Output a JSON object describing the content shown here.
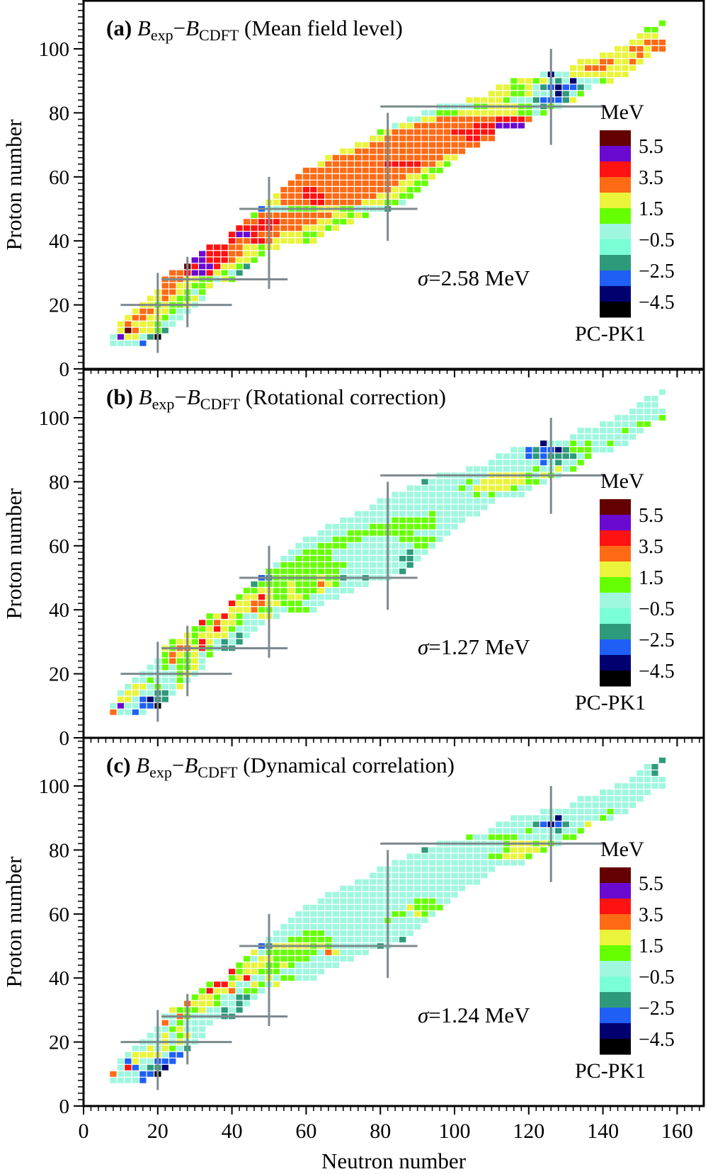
{
  "chart_data": {
    "type": "heatmap",
    "xlabel": "Neutron number",
    "ylabel": "Proton number",
    "xlim": [
      0,
      167
    ],
    "ylim": [
      0,
      115
    ],
    "x_ticks": [
      0,
      20,
      40,
      60,
      80,
      100,
      120,
      140,
      160
    ],
    "y_ticks": [
      0,
      20,
      40,
      60,
      80,
      100
    ],
    "grid": false,
    "color_scale": {
      "unit": "MeV",
      "bins": [
        {
          "code": "l",
          "color": "#640000",
          "range": [
            5.5,
            6.5
          ]
        },
        {
          "code": "k",
          "color": "#6a0ad0",
          "range": [
            4.5,
            5.5
          ]
        },
        {
          "code": "j",
          "color": "#ff1212",
          "range": [
            3.5,
            4.5
          ]
        },
        {
          "code": "i",
          "color": "#ff6a14",
          "range": [
            2.5,
            3.5
          ]
        },
        {
          "code": "h",
          "color": "#e9f43a",
          "range": [
            1.5,
            2.5
          ]
        },
        {
          "code": "g",
          "color": "#66ff00",
          "range": [
            0.5,
            1.5
          ]
        },
        {
          "code": "f",
          "color": "#a0f7df",
          "range": [
            -0.5,
            0.5
          ]
        },
        {
          "code": "e",
          "color": "#7affd6",
          "range": [
            -1.5,
            -0.5
          ]
        },
        {
          "code": "d",
          "color": "#2e9a7c",
          "range": [
            -2.5,
            -1.5
          ]
        },
        {
          "code": "c",
          "color": "#1f5ff5",
          "range": [
            -3.5,
            -2.5
          ]
        },
        {
          "code": "b",
          "color": "#00006e",
          "range": [
            -4.5,
            -3.5
          ]
        },
        {
          "code": "a",
          "color": "#000000",
          "range": [
            -5.5,
            -4.5
          ]
        }
      ],
      "tick_labels": [
        "5.5",
        "3.5",
        "1.5",
        "−0.5",
        "−2.5",
        "−4.5"
      ]
    },
    "magic_lines_color": "#7d8a8e",
    "magic_lines": [
      {
        "orient": "h",
        "at": 20,
        "from": 10,
        "to": 40
      },
      {
        "orient": "h",
        "at": 28,
        "from": 21,
        "to": 55
      },
      {
        "orient": "h",
        "at": 50,
        "from": 42,
        "to": 90
      },
      {
        "orient": "h",
        "at": 82,
        "from": 80,
        "to": 140
      },
      {
        "orient": "v",
        "at": 20,
        "from": 5,
        "to": 30
      },
      {
        "orient": "v",
        "at": 28,
        "from": 13,
        "to": 35
      },
      {
        "orient": "v",
        "at": 50,
        "from": 25,
        "to": 60
      },
      {
        "orient": "v",
        "at": 82,
        "from": 40,
        "to": 80
      },
      {
        "orient": "v",
        "at": 126,
        "from": 70,
        "to": 100
      }
    ],
    "symbols": {
      "B": "B",
      "exp": "exp",
      "dash": "−",
      "CDFT": "CDFT",
      "sigma": "σ"
    },
    "panels": [
      {
        "label": "(a)",
        "subtitle": "(Mean field level)",
        "sigma_text": "=2.58 MeV",
        "model": "PC-PK1",
        "rows": [
          [
            8,
            8,
            "ffffc"
          ],
          [
            10,
            8,
            "fkhhfda"
          ],
          [
            12,
            10,
            "hlihhgd"
          ],
          [
            14,
            10,
            "hihhhgff"
          ],
          [
            16,
            12,
            "hiihhgff"
          ],
          [
            18,
            14,
            "hiihhgff"
          ],
          [
            20,
            16,
            "hhghgghf"
          ],
          [
            22,
            18,
            "hhihgghf"
          ],
          [
            24,
            20,
            "hiihgfg"
          ],
          [
            26,
            22,
            "iihhggh"
          ],
          [
            28,
            22,
            "iiihhggfhg"
          ],
          [
            30,
            24,
            "iijkkjhgfd"
          ],
          [
            32,
            28,
            "ljkkjhhgd"
          ],
          [
            34,
            30,
            "kkjjjihhg"
          ],
          [
            36,
            32,
            "kjjjiihhg"
          ],
          [
            38,
            34,
            "jjjiihhghh"
          ],
          [
            40,
            40,
            "jiijjihhhhgh"
          ],
          [
            42,
            40,
            "jkkjiiihhhggh"
          ],
          [
            44,
            42,
            "jjjjjiiiihhhgh"
          ],
          [
            46,
            44,
            "iijjjiiiiihhggh"
          ],
          [
            48,
            46,
            "giiiiiiiiiihhghg"
          ],
          [
            50,
            48,
            "cfffgggghhhggffffd"
          ],
          [
            52,
            50,
            "hhiiiijjiiiiihhhggf"
          ],
          [
            54,
            52,
            "hiiijjjiiiiiiihhhgg"
          ],
          [
            56,
            54,
            "iiijjiiiiiiiiiihhgg"
          ],
          [
            58,
            56,
            "iiiiiiiiiiiiiiihhgg"
          ],
          [
            60,
            58,
            "iiiiiiiiiiiiiiihhgh"
          ],
          [
            62,
            60,
            "iiiiiiiiiiiiiiiihgg"
          ],
          [
            64,
            64,
            "hiiiiiiiijjjjjiihg"
          ],
          [
            66,
            66,
            "hiiiiiiiiiiiiiiihh"
          ],
          [
            68,
            70,
            "hhiiiiiiiiiiiiiii"
          ],
          [
            70,
            74,
            "hhiiiiiiiiiiiiiii"
          ],
          [
            72,
            78,
            "hhiiiiiiiiiiijjii"
          ],
          [
            74,
            80,
            "ghiiiiiiiijjjjjj"
          ],
          [
            76,
            84,
            "fhhiiiiiiiijjjkkkk"
          ],
          [
            78,
            88,
            "ffhhiiiiiiiijjjji"
          ],
          [
            80,
            92,
            "ffggghhhhhhhhggfg"
          ],
          [
            82,
            96,
            "fffffgghhhhggfdgf"
          ],
          [
            84,
            104,
            "hhhhhgfffdcccdh"
          ],
          [
            86,
            110,
            "hhhgghfffbdfg"
          ],
          [
            88,
            112,
            "hhgghfdcbccdf"
          ],
          [
            90,
            116,
            "ghhghfdfbfffgh"
          ],
          [
            92,
            124,
            "fbffhhhhhhhh"
          ],
          [
            94,
            132,
            "hhiiihhhh"
          ],
          [
            96,
            134,
            "hhhiihhih"
          ],
          [
            98,
            140,
            "hhhhhih"
          ],
          [
            100,
            144,
            "hhiihii"
          ],
          [
            102,
            148,
            "hhiii"
          ],
          [
            104,
            150,
            "hhh"
          ],
          [
            106,
            152,
            "gg"
          ],
          [
            108,
            156,
            "g"
          ]
        ]
      },
      {
        "label": "(b)",
        "subtitle": "(Rotational correction)",
        "sigma_text": "=1.27 MeV",
        "model": "PC-PK1",
        "rows": [
          [
            8,
            8,
            "iffcf"
          ],
          [
            10,
            8,
            "fkffcca"
          ],
          [
            12,
            10,
            "hhfcbdd"
          ],
          [
            14,
            10,
            "fhhffddf"
          ],
          [
            16,
            12,
            "fhhfgffh"
          ],
          [
            18,
            14,
            "ffgfffgf"
          ],
          [
            20,
            16,
            "fffffghf"
          ],
          [
            22,
            18,
            "ffgfgghf"
          ],
          [
            24,
            20,
            "fgigghf"
          ],
          [
            26,
            22,
            "gihghfg"
          ],
          [
            28,
            22,
            "hgiihjgfdd"
          ],
          [
            30,
            24,
            "ghhgjhfdfd"
          ],
          [
            32,
            28,
            "hghhhhfdf"
          ],
          [
            34,
            30,
            "gghjhgfff"
          ],
          [
            36,
            32,
            "jgihhgfff"
          ],
          [
            38,
            34,
            "ghjhgffhhf"
          ],
          [
            40,
            40,
            "hhhiggffgggf"
          ],
          [
            42,
            40,
            "jhhiihhgggfff"
          ],
          [
            44,
            42,
            "ghhjhgghhgffff"
          ],
          [
            46,
            44,
            "gghhgghggghffff"
          ],
          [
            48,
            46,
            "dgggghgggihgffff"
          ],
          [
            50,
            48,
            "cdgggggghggdffdfff"
          ],
          [
            52,
            50,
            "ggggggggggffffffffd"
          ],
          [
            54,
            52,
            "fgggggggggffffffffd"
          ],
          [
            56,
            54,
            "ffgggggfffffffffddf"
          ],
          [
            58,
            56,
            "ffggggffffffffffdff"
          ],
          [
            60,
            58,
            "fffggggfffffffffggf"
          ],
          [
            62,
            60,
            "ffffggggfffffgggggf"
          ],
          [
            64,
            64,
            "ffffgggggggggfffff"
          ],
          [
            66,
            66,
            "ffffffgggggggggfff"
          ],
          [
            68,
            70,
            "fffffffggggggffff"
          ],
          [
            70,
            74,
            "ffffffffffgffffff"
          ],
          [
            72,
            78,
            "ffffffffffffffff"
          ],
          [
            74,
            80,
            "ffffffffffffffff"
          ],
          [
            76,
            84,
            "fffffffffffgfgffff"
          ],
          [
            78,
            88,
            "fffffffgfhhhhhgff"
          ],
          [
            80,
            92,
            "dfffffgfhhhhhhggf"
          ],
          [
            82,
            96,
            "fffffffhhhhhgfhgf"
          ],
          [
            84,
            104,
            "fffffffffgffhfg"
          ],
          [
            86,
            110,
            "fffffffcfdffg"
          ],
          [
            88,
            112,
            "ffffcdcddddfg"
          ],
          [
            90,
            116,
            "ffcdccbdgggfff"
          ],
          [
            92,
            124,
            "bfffgfgffgff"
          ],
          [
            94,
            132,
            "fffffffff"
          ],
          [
            96,
            134,
            "ffffffgff"
          ],
          [
            98,
            140,
            "fffffgg"
          ],
          [
            100,
            144,
            "ffffffg"
          ],
          [
            102,
            148,
            "fffff"
          ],
          [
            104,
            150,
            "fff"
          ],
          [
            106,
            152,
            "ff"
          ],
          [
            108,
            156,
            "f"
          ]
        ]
      },
      {
        "label": "(c)",
        "subtitle": "(Dynamical correlation)",
        "sigma_text": "=1.24 MeV",
        "model": "PC-PK1",
        "rows": [
          [
            8,
            8,
            "ffffc"
          ],
          [
            10,
            8,
            "ifffcca"
          ],
          [
            12,
            10,
            "fjcfddb"
          ],
          [
            14,
            10,
            "fchffccc"
          ],
          [
            16,
            12,
            "fhhhhfcc"
          ],
          [
            18,
            14,
            "ffhfhgfd"
          ],
          [
            20,
            16,
            "fffhfhff"
          ],
          [
            22,
            18,
            "ffhfghff"
          ],
          [
            24,
            20,
            "ffghfff"
          ],
          [
            26,
            22,
            "ifgffff"
          ],
          [
            28,
            22,
            "ffigffffdd"
          ],
          [
            30,
            24,
            "hggghffdfd"
          ],
          [
            32,
            28,
            "ihhhgffdf"
          ],
          [
            34,
            30,
            "ghhgffddf"
          ],
          [
            36,
            32,
            "gjhhifggf"
          ],
          [
            38,
            34,
            "gjjhffhgfh"
          ],
          [
            40,
            40,
            "ghjffhfggfff"
          ],
          [
            42,
            40,
            "jghhgggffffff"
          ],
          [
            44,
            42,
            "ghhhgghgffffff"
          ],
          [
            46,
            44,
            "gfhhgggggffffff"
          ],
          [
            48,
            46,
            "hfgggggggfihffff"
          ],
          [
            50,
            48,
            "cdhhhhhghgffffffdf"
          ],
          [
            52,
            50,
            "fffggggggfffffffffd"
          ],
          [
            54,
            52,
            "ffffgggffffffffffff"
          ],
          [
            56,
            54,
            "fffffffffffffffffff"
          ],
          [
            58,
            56,
            "fffffffffffffgfffff"
          ],
          [
            60,
            58,
            "fffffffffffffggfhgf"
          ],
          [
            62,
            60,
            "ffffffffffffffhgggg"
          ],
          [
            64,
            64,
            "fffffffffffffgggff"
          ],
          [
            66,
            66,
            "ffffffffffffffffff"
          ],
          [
            68,
            70,
            "fffffffffffffffff"
          ],
          [
            70,
            74,
            "fffffffffffffffff"
          ],
          [
            72,
            78,
            "ffffffffffffffff"
          ],
          [
            74,
            80,
            "ffffffffffffffff"
          ],
          [
            76,
            84,
            "ffffffffffffffffff"
          ],
          [
            78,
            88,
            "fffffffffffgghhhg"
          ],
          [
            80,
            92,
            "dffffffffffghhhhg"
          ],
          [
            82,
            96,
            "fffffffffghhhghgf"
          ],
          [
            84,
            104,
            "gffggggffffffgg"
          ],
          [
            86,
            110,
            "fffffgfffdffg"
          ],
          [
            88,
            112,
            "fffffdcbcdffh"
          ],
          [
            90,
            116,
            "ffffffbfffffgf"
          ],
          [
            92,
            124,
            "fffffffffgff"
          ],
          [
            94,
            132,
            "fffffffff"
          ],
          [
            96,
            134,
            "fffffffff"
          ],
          [
            98,
            140,
            "fffffff"
          ],
          [
            100,
            144,
            "fffffff"
          ],
          [
            102,
            148,
            "fffff"
          ],
          [
            104,
            150,
            "ffd"
          ],
          [
            106,
            152,
            "fd"
          ],
          [
            108,
            156,
            "d"
          ]
        ]
      }
    ]
  }
}
